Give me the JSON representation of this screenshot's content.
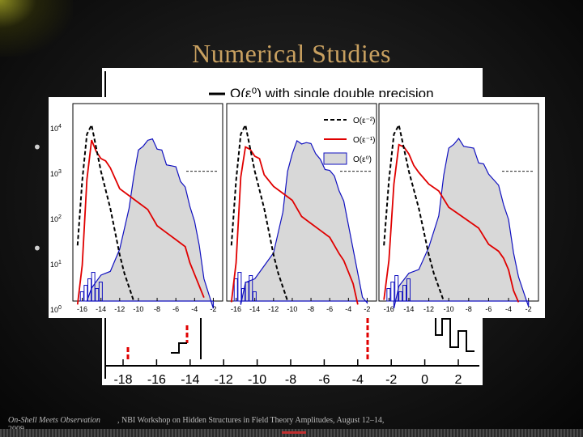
{
  "slide": {
    "title": "Numerical Studies",
    "bullets": [
      "•",
      "•"
    ],
    "footer_left": "On-Shell Meets Observation",
    "footer_year": "2009",
    "footer_right": ", NBI Workshop on Hidden Structures in Field Theory Amplitudes, August 12–14,"
  },
  "colors": {
    "title": "#c8a060",
    "bullet": "#cfcfcf",
    "series_black": "#000000",
    "series_red": "#e00000",
    "series_blue": "#1010c0",
    "fill_gray": "#d8d8d8"
  },
  "chart_data": [
    {
      "type": "line",
      "panel": "back",
      "legend": [
        "O(ε⁰) with single double precision"
      ],
      "x_ticks": [
        "-18",
        "-16",
        "-14",
        "-12",
        "-10",
        "-8",
        "-6",
        "-4",
        "-2",
        "0",
        "2"
      ],
      "xlim": [
        -19,
        3
      ]
    },
    {
      "type": "area",
      "panel": "front",
      "subpanels": 3,
      "x_ticks": [
        "-16",
        "-14",
        "-12",
        "-10",
        "-8",
        "-6",
        "-4",
        "-2"
      ],
      "y_ticks": [
        "10^4",
        "10^3",
        "10^2",
        "10^1",
        "10^0"
      ],
      "xlim": [
        -17,
        -1
      ],
      "ylim": [
        0,
        4
      ],
      "legend": [
        "O(ε⁻²)",
        "O(ε⁻¹)",
        "O(ε⁰)"
      ],
      "series": [
        {
          "name": "O(ε⁻²)",
          "style": "dashed",
          "x": [
            -16.5,
            -16,
            -15.5,
            -15,
            -14.5,
            -14,
            -13.5,
            -13,
            -12.5,
            -12,
            -11.5,
            -11,
            -10.5
          ],
          "y": [
            1.2,
            2.6,
            3.6,
            3.8,
            3.3,
            2.8,
            2.4,
            2.0,
            1.5,
            1.0,
            0.6,
            0.3,
            0.0
          ]
        },
        {
          "name": "O(ε⁻¹)",
          "style": "solid",
          "x": [
            -16.5,
            -16,
            -15.5,
            -15,
            -14.5,
            -14,
            -13.5,
            -13,
            -12,
            -11,
            -10,
            -9,
            -8,
            -7,
            -6,
            -5,
            -4.5,
            -4,
            -3.5,
            -3
          ],
          "y": [
            0.0,
            0.8,
            2.6,
            3.4,
            3.3,
            3.1,
            3.0,
            2.8,
            2.5,
            2.3,
            2.1,
            1.9,
            1.7,
            1.5,
            1.3,
            1.1,
            0.9,
            0.6,
            0.3,
            0.0
          ]
        },
        {
          "name": "O(ε⁰)",
          "style": "filled",
          "x": [
            -15.5,
            -15,
            -14,
            -13,
            -12,
            -11,
            -10.5,
            -10,
            -9.5,
            -9,
            -8.5,
            -8,
            -7.5,
            -7,
            -6.5,
            -6,
            -5.5,
            -5,
            -4.5,
            -4,
            -3.5,
            -3,
            -2.5,
            -2
          ],
          "y": [
            0.0,
            0.4,
            0.6,
            0.8,
            1.2,
            2.0,
            2.8,
            3.3,
            3.5,
            3.55,
            3.5,
            3.4,
            3.3,
            3.1,
            3.0,
            2.9,
            2.7,
            2.5,
            2.2,
            1.8,
            1.2,
            0.6,
            0.2,
            0.0
          ]
        }
      ]
    }
  ]
}
